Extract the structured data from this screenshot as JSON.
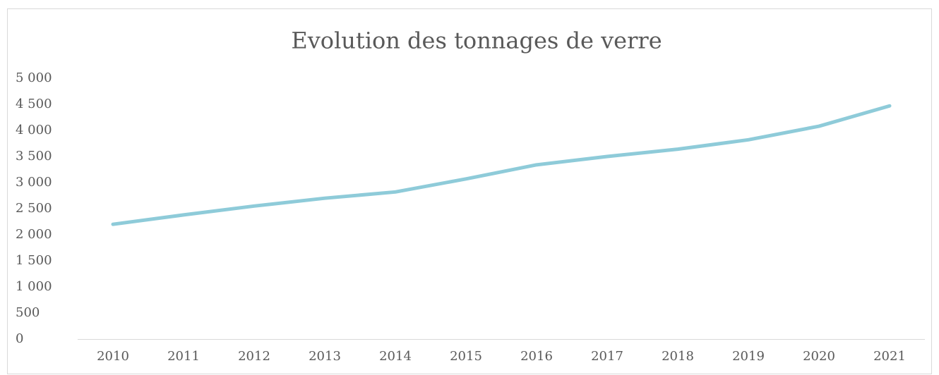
{
  "chart_data": {
    "type": "line",
    "title": "Evolution des tonnages de verre",
    "categories": [
      "2010",
      "2011",
      "2012",
      "2013",
      "2014",
      "2015",
      "2016",
      "2017",
      "2018",
      "2019",
      "2020",
      "2021"
    ],
    "series": [
      {
        "color": "#8ecbd9",
        "values": [
          2200,
          2380,
          2550,
          2700,
          2820,
          3070,
          3340,
          3500,
          3640,
          3820,
          4080,
          4470
        ]
      }
    ],
    "ylim": [
      0,
      5000
    ],
    "yticks": [
      0,
      500,
      {
        "value": 1000,
        "label": "1 000"
      },
      {
        "value": 1500,
        "label": "1 500"
      },
      {
        "value": 2000,
        "label": "2 000"
      },
      {
        "value": 2500,
        "label": "2 500"
      },
      {
        "value": 3000,
        "label": "3 000"
      },
      {
        "value": 3500,
        "label": "3 500"
      },
      {
        "value": 4000,
        "label": "4 000"
      },
      {
        "value": 4500,
        "label": "4 500"
      },
      {
        "value": 5000,
        "label": "5 000"
      }
    ],
    "grid": false
  }
}
